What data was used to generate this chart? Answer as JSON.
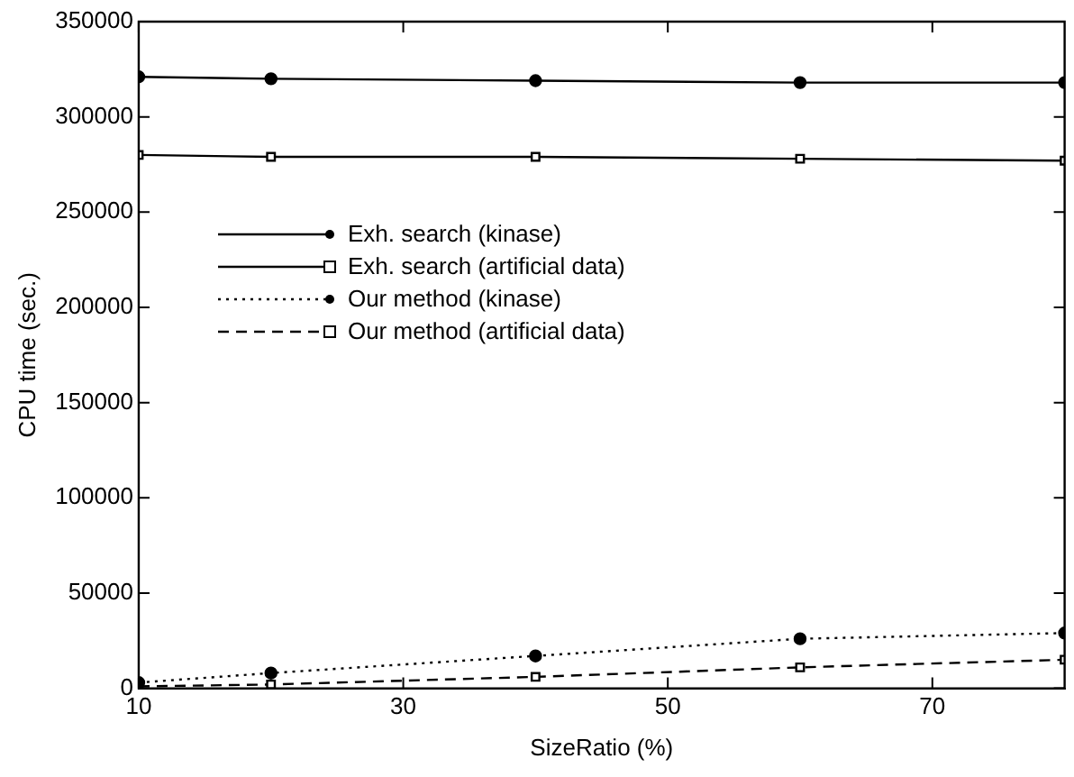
{
  "chart_data": {
    "type": "line",
    "xlabel": "SizeRatio (%)",
    "ylabel": "CPU time (sec.)",
    "x": [
      10,
      20,
      40,
      60,
      80
    ],
    "xlim": [
      10,
      80
    ],
    "xticks": [
      10,
      30,
      50,
      70
    ],
    "ylim": [
      0,
      350000
    ],
    "yticks": [
      0,
      50000,
      100000,
      150000,
      200000,
      250000,
      300000,
      350000
    ],
    "grid": false,
    "legend": "center left",
    "series": [
      {
        "name": "Exh. search (kinase)",
        "color": "#000000",
        "marker": "circle",
        "line_style": "solid",
        "values": [
          321000,
          320000,
          319000,
          318000,
          318000
        ]
      },
      {
        "name": "Exh. search (artificial data)",
        "color": "#000000",
        "marker": "square",
        "line_style": "solid",
        "values": [
          280000,
          279000,
          279000,
          278000,
          277000
        ]
      },
      {
        "name": "Our method (kinase)",
        "color": "#000000",
        "marker": "circle",
        "line_style": "dotted",
        "values": [
          3000,
          8000,
          17000,
          26000,
          29000
        ]
      },
      {
        "name": "Our method (artificial data)",
        "color": "#000000",
        "marker": "square",
        "line_style": "dashed",
        "values": [
          1000,
          2000,
          6000,
          11000,
          15000
        ]
      }
    ]
  }
}
